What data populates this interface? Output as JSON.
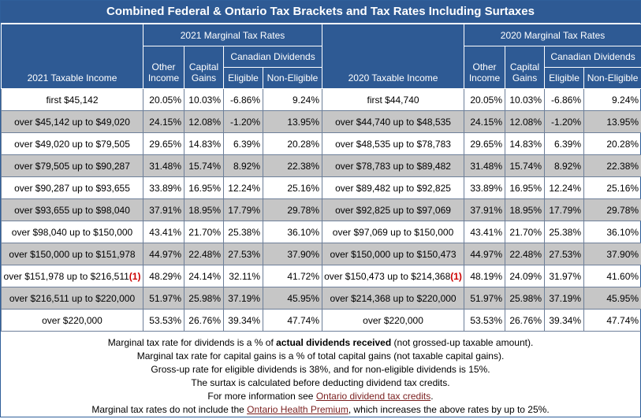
{
  "title": "Combined Federal & Ontario Tax Brackets and Tax Rates Including Surtaxes",
  "headers": {
    "rates2021": "2021 Marginal Tax Rates",
    "rates2020": "2020 Marginal Tax Rates",
    "income2021": "2021 Taxable Income",
    "income2020": "2020 Taxable Income",
    "other_income_1": "Other",
    "other_income_2": "Income",
    "capital_gains_1": "Capital",
    "capital_gains_2": "Gains",
    "canadian_dividends": "Canadian Dividends",
    "eligible": "Eligible",
    "non_eligible": "Non-Eligible"
  },
  "footnote_marker": "(1)",
  "rows": [
    {
      "inc21": "first $45,142",
      "o21": "20.05%",
      "c21": "10.03%",
      "e21": "-6.86%",
      "n21": "9.24%",
      "inc20": "first $44,740",
      "o20": "20.05%",
      "c20": "10.03%",
      "e20": "-6.86%",
      "n20": "9.24%"
    },
    {
      "inc21": "over $45,142 up to $49,020",
      "o21": "24.15%",
      "c21": "12.08%",
      "e21": "-1.20%",
      "n21": "13.95%",
      "inc20": "over $44,740 up to $48,535",
      "o20": "24.15%",
      "c20": "12.08%",
      "e20": "-1.20%",
      "n20": "13.95%"
    },
    {
      "inc21": "over $49,020 up to $79,505",
      "o21": "29.65%",
      "c21": "14.83%",
      "e21": "6.39%",
      "n21": "20.28%",
      "inc20": "over $48,535 up to $78,783",
      "o20": "29.65%",
      "c20": "14.83%",
      "e20": "6.39%",
      "n20": "20.28%"
    },
    {
      "inc21": "over $79,505 up to $90,287",
      "o21": "31.48%",
      "c21": "15.74%",
      "e21": "8.92%",
      "n21": "22.38%",
      "inc20": "over $78,783 up to $89,482",
      "o20": "31.48%",
      "c20": "15.74%",
      "e20": "8.92%",
      "n20": "22.38%"
    },
    {
      "inc21": "over $90,287 up to $93,655",
      "o21": "33.89%",
      "c21": "16.95%",
      "e21": "12.24%",
      "n21": "25.16%",
      "inc20": "over $89,482 up to $92,825",
      "o20": "33.89%",
      "c20": "16.95%",
      "e20": "12.24%",
      "n20": "25.16%"
    },
    {
      "inc21": "over $93,655 up to $98,040",
      "o21": "37.91%",
      "c21": "18.95%",
      "e21": "17.79%",
      "n21": "29.78%",
      "inc20": "over $92,825 up to $97,069",
      "o20": "37.91%",
      "c20": "18.95%",
      "e20": "17.79%",
      "n20": "29.78%"
    },
    {
      "inc21": "over $98,040 up to $150,000",
      "o21": "43.41%",
      "c21": "21.70%",
      "e21": "25.38%",
      "n21": "36.10%",
      "inc20": "over $97,069 up to $150,000",
      "o20": "43.41%",
      "c20": "21.70%",
      "e20": "25.38%",
      "n20": "36.10%"
    },
    {
      "inc21": "over $150,000 up to $151,978",
      "o21": "44.97%",
      "c21": "22.48%",
      "e21": "27.53%",
      "n21": "37.90%",
      "inc20": "over $150,000 up to $150,473",
      "o20": "44.97%",
      "c20": "22.48%",
      "e20": "27.53%",
      "n20": "37.90%"
    },
    {
      "inc21": "over $151,978 up to $216,511",
      "o21": "48.29%",
      "c21": "24.14%",
      "e21": "32.11%",
      "n21": "41.72%",
      "inc20": "over $150,473 up to $214,368",
      "o20": "48.19%",
      "c20": "24.09%",
      "e20": "31.97%",
      "n20": "41.60%"
    },
    {
      "inc21": "over $216,511 up to $220,000",
      "o21": "51.97%",
      "c21": "25.98%",
      "e21": "37.19%",
      "n21": "45.95%",
      "inc20": "over $214,368 up to $220,000",
      "o20": "51.97%",
      "c20": "25.98%",
      "e20": "37.19%",
      "n20": "45.95%"
    },
    {
      "inc21": "over $220,000",
      "o21": "53.53%",
      "c21": "26.76%",
      "e21": "39.34%",
      "n21": "47.74%",
      "inc20": "over $220,000",
      "o20": "53.53%",
      "c20": "26.76%",
      "e20": "39.34%",
      "n20": "47.74%"
    }
  ],
  "notes": {
    "line1_pre": "Marginal tax rate for dividends is a % of ",
    "line1_bold": "actual dividends received",
    "line1_post": " (not grossed-up taxable amount).",
    "line2": "Marginal tax rate for capital gains is a % of total capital gains (not taxable capital gains).",
    "line3": "Gross-up rate for eligible dividends is 38%, and for non-eligible dividends is 15%.",
    "line4": "The surtax is calculated before deducting dividend tax credits.",
    "line5_pre": "For more information see ",
    "line5_link": "Ontario dividend tax credits",
    "line5_post": ".",
    "line6_pre": "Marginal tax rates do not include the ",
    "line6_link": "Ontario Health Premium",
    "line6_post": ", which increases the above rates by up to 25%."
  }
}
